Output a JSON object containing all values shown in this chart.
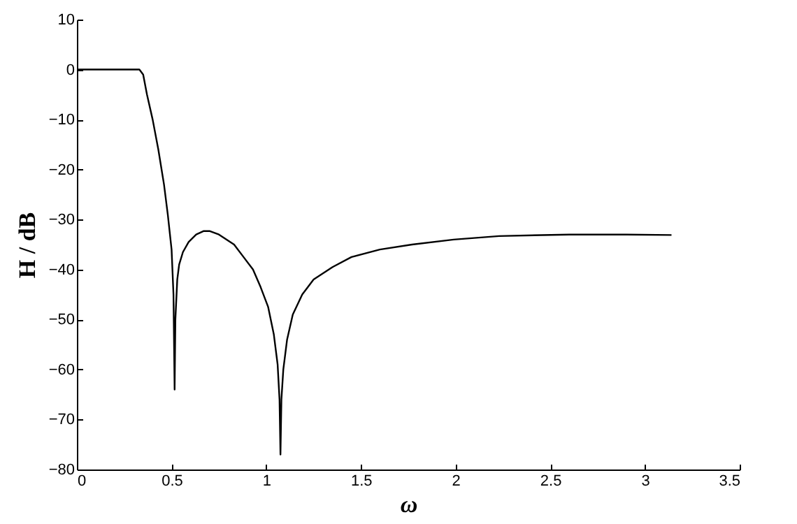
{
  "chart_data": {
    "type": "line",
    "xlabel": "ω",
    "ylabel": "H / dB",
    "xlim": [
      0,
      3.5
    ],
    "ylim": [
      -80,
      10
    ],
    "xticks": [
      0,
      0.5,
      1,
      1.5,
      2,
      2.5,
      3,
      3.5
    ],
    "yticks": [
      -80,
      -70,
      -60,
      -50,
      -40,
      -30,
      -20,
      -10,
      0,
      10
    ],
    "grid": false,
    "marker": "none",
    "line_style": "solid",
    "series": [
      {
        "color": "#000000",
        "x": [
          0,
          0.1,
          0.2,
          0.3,
          0.33,
          0.35,
          0.37,
          0.4,
          0.43,
          0.46,
          0.48,
          0.5,
          0.51,
          0.516,
          0.52,
          0.53,
          0.54,
          0.56,
          0.59,
          0.63,
          0.67,
          0.7,
          0.75,
          0.83,
          0.88,
          0.93,
          0.97,
          1.01,
          1.04,
          1.06,
          1.07,
          1.075,
          1.08,
          1.09,
          1.11,
          1.14,
          1.19,
          1.25,
          1.35,
          1.45,
          1.6,
          1.77,
          1.99,
          2.23,
          2.6,
          2.9,
          3.14
        ],
        "values": [
          0,
          0,
          0,
          0,
          0,
          -1,
          -5,
          -10,
          -16,
          -23,
          -29,
          -36,
          -45,
          -64,
          -50,
          -42,
          -39,
          -36.5,
          -34.5,
          -33,
          -32.3,
          -32.3,
          -33,
          -35,
          -37.5,
          -40,
          -43.5,
          -47.5,
          -53,
          -59,
          -66,
          -77,
          -66,
          -60,
          -54,
          -49,
          -45,
          -42,
          -39.5,
          -37.5,
          -36,
          -35,
          -34,
          -33.3,
          -33,
          -33,
          -33.1
        ]
      }
    ]
  }
}
